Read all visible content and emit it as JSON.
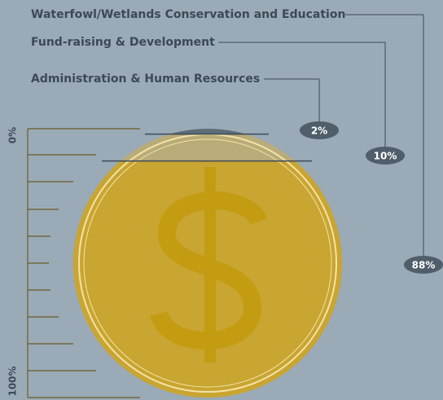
{
  "chart_data": {
    "type": "coin",
    "categories": [
      "Waterfowl/Wetlands Conservation and Education",
      "Fund-raising & Development",
      "Administration & Human Resources"
    ],
    "values": [
      88,
      10,
      2
    ],
    "value_labels": [
      "88%",
      "10%",
      "2%"
    ],
    "colors": [
      "#c9a531",
      "#b9ac78",
      "#5d6d78"
    ],
    "ylim": [
      0,
      100
    ],
    "yticks": [
      {
        "value": 0,
        "label": "0%"
      },
      {
        "value": 100,
        "label": "100%"
      }
    ]
  }
}
